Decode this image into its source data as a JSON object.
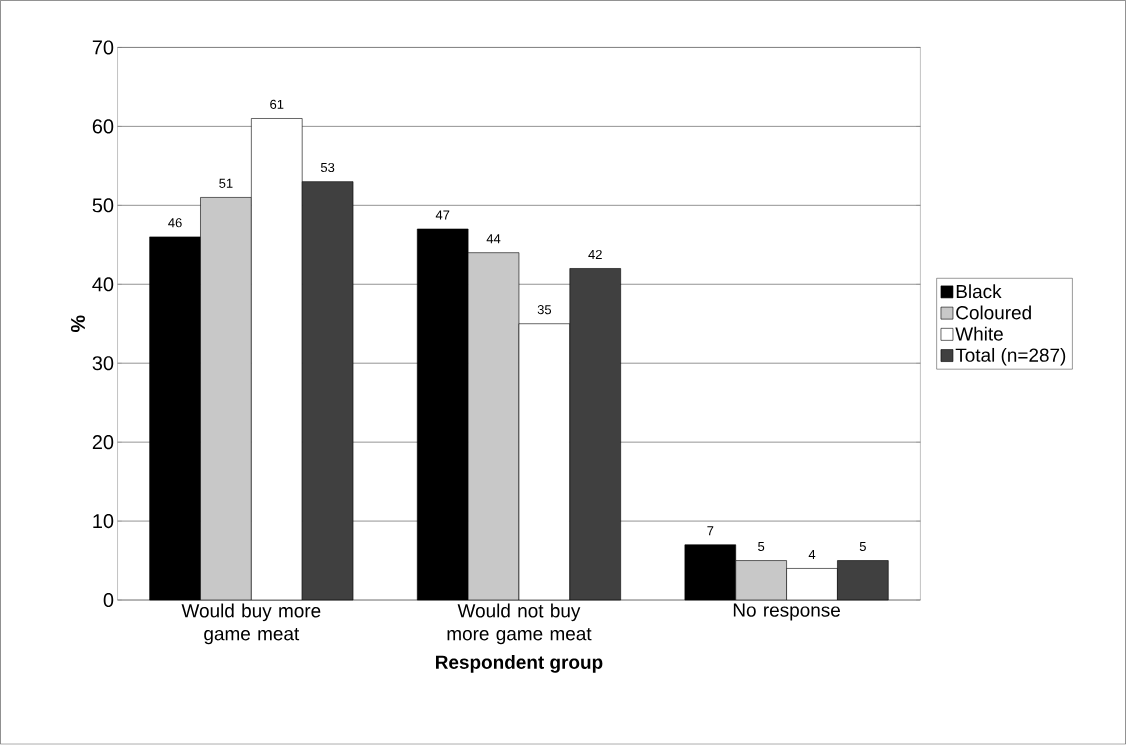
{
  "chart_data": {
    "type": "bar",
    "xlabel": "Respondent group",
    "ylabel": "%",
    "categories": [
      "Would buy more game meat",
      "Would not buy more game meat",
      "No response"
    ],
    "series": [
      {
        "name": "Black",
        "color": "#000000",
        "values": [
          46,
          47,
          7
        ]
      },
      {
        "name": "Coloured",
        "color": "#c8c8c8",
        "values": [
          51,
          44,
          5
        ]
      },
      {
        "name": "White",
        "color": "#ffffff",
        "values": [
          61,
          35,
          4
        ]
      },
      {
        "name": "Total (n=287)",
        "color": "#404040",
        "values": [
          53,
          42,
          5
        ]
      }
    ],
    "ylim": [
      0,
      70
    ],
    "yticks": [
      0,
      10,
      20,
      30,
      40,
      50,
      60,
      70
    ],
    "grid": "y",
    "legend": "right",
    "data_labels": true
  }
}
